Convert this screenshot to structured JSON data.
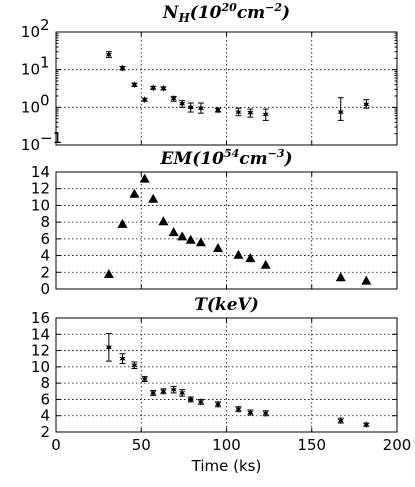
{
  "chart_data": [
    {
      "type": "scatter",
      "title": "N_H(10^20 cm^-2)",
      "title_parts": {
        "main": "N",
        "sub": "H",
        "open": "(10",
        "sup1": "20",
        "unit": "cm",
        "sup2": "−2",
        "close": ")"
      },
      "yscale": "log",
      "ylim": [
        0.1,
        100
      ],
      "xlim": [
        0,
        200
      ],
      "grid": true,
      "marker": "star",
      "yticks": [
        0.1,
        1,
        10,
        100
      ],
      "ytick_labels": [
        {
          "base": "10",
          "exp": "−1"
        },
        {
          "base": "10",
          "exp": "0"
        },
        {
          "base": "10",
          "exp": "1"
        },
        {
          "base": "10",
          "exp": "2"
        }
      ],
      "points": [
        {
          "x": 31,
          "y": 25,
          "lo": 21,
          "hi": 30
        },
        {
          "x": 39,
          "y": 11,
          "lo": 9.8,
          "hi": 12.2
        },
        {
          "x": 46,
          "y": 4.0,
          "lo": 3.6,
          "hi": 4.4
        },
        {
          "x": 52,
          "y": 1.6,
          "lo": 1.45,
          "hi": 1.75
        },
        {
          "x": 57,
          "y": 3.3,
          "lo": 3.0,
          "hi": 3.6
        },
        {
          "x": 63,
          "y": 3.2,
          "lo": 2.9,
          "hi": 3.5
        },
        {
          "x": 69,
          "y": 1.7,
          "lo": 1.45,
          "hi": 1.95
        },
        {
          "x": 74,
          "y": 1.25,
          "lo": 1.0,
          "hi": 1.5
        },
        {
          "x": 79,
          "y": 1.0,
          "lo": 0.75,
          "hi": 1.3
        },
        {
          "x": 85,
          "y": 0.95,
          "lo": 0.7,
          "hi": 1.3
        },
        {
          "x": 95,
          "y": 0.85,
          "lo": 0.75,
          "hi": 0.95
        },
        {
          "x": 107,
          "y": 0.75,
          "lo": 0.6,
          "hi": 0.95
        },
        {
          "x": 114,
          "y": 0.72,
          "lo": 0.55,
          "hi": 0.9
        },
        {
          "x": 123,
          "y": 0.65,
          "lo": 0.45,
          "hi": 0.9
        },
        {
          "x": 167,
          "y": 0.75,
          "lo": 0.45,
          "hi": 1.8
        },
        {
          "x": 182,
          "y": 1.2,
          "lo": 0.95,
          "hi": 1.6
        }
      ]
    },
    {
      "type": "scatter",
      "title": "EM(10^54 cm^-3)",
      "title_parts": {
        "main": "EM",
        "open": "(10",
        "sup1": "54",
        "unit": "cm",
        "sup2": "−3",
        "close": ")"
      },
      "ylim": [
        0,
        14
      ],
      "xlim": [
        0,
        200
      ],
      "grid": true,
      "marker": "triangle",
      "yticks": [
        0,
        2,
        4,
        6,
        8,
        10,
        12,
        14
      ],
      "ytick_labels": [
        "0",
        "2",
        "4",
        "6",
        "8",
        "10",
        "12",
        "14"
      ],
      "points": [
        {
          "x": 31,
          "y": 1.8
        },
        {
          "x": 39,
          "y": 7.8
        },
        {
          "x": 46,
          "y": 11.4
        },
        {
          "x": 52,
          "y": 13.2
        },
        {
          "x": 57,
          "y": 10.8
        },
        {
          "x": 63,
          "y": 8.1
        },
        {
          "x": 69,
          "y": 6.8
        },
        {
          "x": 74,
          "y": 6.3
        },
        {
          "x": 79,
          "y": 5.9
        },
        {
          "x": 85,
          "y": 5.6
        },
        {
          "x": 95,
          "y": 4.9
        },
        {
          "x": 107,
          "y": 4.1
        },
        {
          "x": 114,
          "y": 3.7
        },
        {
          "x": 123,
          "y": 2.9
        },
        {
          "x": 167,
          "y": 1.4
        },
        {
          "x": 182,
          "y": 1.0
        }
      ]
    },
    {
      "type": "scatter",
      "title": "T(keV)",
      "title_parts": {
        "main": "T(keV)"
      },
      "ylim": [
        2,
        16
      ],
      "xlim": [
        0,
        200
      ],
      "grid": true,
      "marker": "star",
      "xlabel": "Time (ks)",
      "yticks": [
        2,
        4,
        6,
        8,
        10,
        12,
        14,
        16
      ],
      "ytick_labels": [
        "2",
        "4",
        "6",
        "8",
        "10",
        "12",
        "14",
        "16"
      ],
      "xticks": [
        0,
        50,
        100,
        150,
        200
      ],
      "xtick_labels": [
        "0",
        "50",
        "100",
        "150",
        "200"
      ],
      "points": [
        {
          "x": 31,
          "y": 12.4,
          "lo": 10.7,
          "hi": 14.1
        },
        {
          "x": 39,
          "y": 11.0,
          "lo": 10.4,
          "hi": 11.6
        },
        {
          "x": 46,
          "y": 10.2,
          "lo": 9.8,
          "hi": 10.6
        },
        {
          "x": 52,
          "y": 8.5,
          "lo": 8.2,
          "hi": 8.8
        },
        {
          "x": 57,
          "y": 6.8,
          "lo": 6.5,
          "hi": 7.1
        },
        {
          "x": 63,
          "y": 7.0,
          "lo": 6.7,
          "hi": 7.3
        },
        {
          "x": 69,
          "y": 7.2,
          "lo": 6.8,
          "hi": 7.6
        },
        {
          "x": 74,
          "y": 6.8,
          "lo": 6.4,
          "hi": 7.2
        },
        {
          "x": 79,
          "y": 6.0,
          "lo": 5.7,
          "hi": 6.3
        },
        {
          "x": 85,
          "y": 5.7,
          "lo": 5.4,
          "hi": 6.0
        },
        {
          "x": 95,
          "y": 5.4,
          "lo": 5.1,
          "hi": 5.7
        },
        {
          "x": 107,
          "y": 4.8,
          "lo": 4.5,
          "hi": 5.1
        },
        {
          "x": 114,
          "y": 4.4,
          "lo": 4.1,
          "hi": 4.7
        },
        {
          "x": 123,
          "y": 4.3,
          "lo": 4.0,
          "hi": 4.6
        },
        {
          "x": 167,
          "y": 3.4,
          "lo": 3.1,
          "hi": 3.7
        },
        {
          "x": 182,
          "y": 2.9,
          "lo": 2.7,
          "hi": 3.1
        }
      ]
    }
  ]
}
